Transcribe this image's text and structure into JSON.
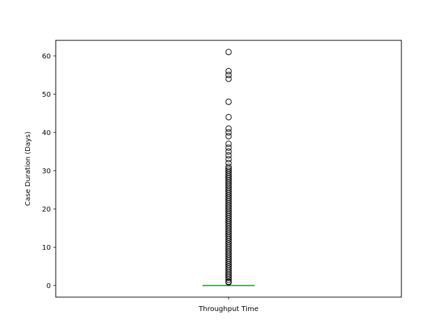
{
  "chart_data": {
    "type": "box",
    "title": "",
    "xlabel": "",
    "ylabel": "Case Duration (Days)",
    "categories": [
      "Throughput Time"
    ],
    "ylim": [
      -3.05,
      64.05
    ],
    "yticks": [
      0,
      10,
      20,
      30,
      40,
      50,
      60
    ],
    "grid": false,
    "box": {
      "min": 0,
      "q1": 0,
      "median": 0,
      "q3": 0,
      "max": 0
    },
    "outliers": [
      0.8,
      1,
      1.5,
      2,
      2.5,
      3,
      3.5,
      4,
      4.5,
      5,
      5.5,
      6,
      6.5,
      7,
      7.5,
      8,
      8.5,
      9,
      9.5,
      10,
      10.5,
      11,
      11.5,
      12,
      12.5,
      13,
      13.5,
      14,
      14.5,
      15,
      15.5,
      16,
      16.5,
      17,
      17.5,
      18,
      18.5,
      19,
      19.5,
      20,
      20.5,
      21,
      21.5,
      22,
      22.5,
      23,
      23.5,
      24,
      24.5,
      25,
      25.5,
      26,
      26.5,
      27,
      27.5,
      28,
      28.5,
      29,
      29.5,
      30,
      30.5,
      31,
      32,
      33,
      34,
      35,
      36,
      37,
      39,
      40,
      41,
      44,
      48,
      54,
      55,
      56,
      61
    ],
    "colors": {
      "median": "#2ca02c",
      "box": "#1f77b4",
      "outlier": "#000000"
    }
  }
}
